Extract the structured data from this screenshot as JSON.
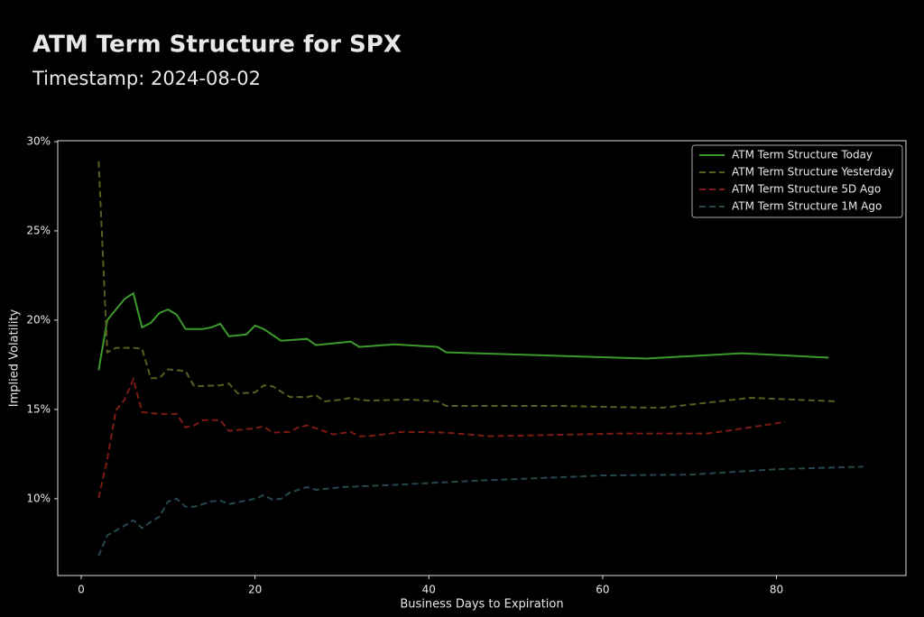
{
  "chart_data": {
    "type": "line",
    "title": "ATM Term Structure for SPX",
    "subtitle": "Timestamp: 2024-08-02",
    "x_label": "Business Days to Expiration",
    "y_label": "Implied Volatility",
    "xlim": [
      -2.7,
      94.9
    ],
    "xticks": [
      0,
      20,
      40,
      60,
      80
    ],
    "ylim": [
      5.7,
      30.05
    ],
    "yticks": [
      {
        "value": 10,
        "label": "10%"
      },
      {
        "value": 15,
        "label": "15%"
      },
      {
        "value": 20,
        "label": "20%"
      },
      {
        "value": 25,
        "label": "25%"
      },
      {
        "value": 30,
        "label": "30%"
      }
    ],
    "grid": false,
    "legend": "upper right",
    "series": [
      {
        "name": "ATM Term Structure Today",
        "color": "#3c9a2c",
        "dash": "solid",
        "x": [
          2,
          3,
          4,
          5,
          6,
          7,
          8,
          9,
          10,
          11,
          12,
          14,
          15,
          16,
          17,
          19,
          20,
          21,
          23,
          26,
          27,
          31,
          32,
          36,
          41,
          42,
          65,
          76,
          86
        ],
        "values": [
          17.2,
          20.0,
          20.6,
          21.2,
          21.5,
          19.6,
          19.85,
          20.4,
          20.6,
          20.3,
          19.5,
          19.5,
          19.6,
          19.8,
          19.1,
          19.2,
          19.7,
          19.5,
          18.85,
          18.95,
          18.6,
          18.8,
          18.5,
          18.65,
          18.5,
          18.2,
          17.85,
          18.15,
          17.9
        ]
      },
      {
        "name": "ATM Term Structure Yesterday",
        "color": "#5c5c20",
        "dash": "dashed",
        "x": [
          2,
          3,
          4,
          6,
          7,
          8,
          9,
          10,
          12,
          13,
          16,
          17,
          18,
          20,
          21,
          22,
          24,
          26,
          27,
          28,
          30,
          31,
          32,
          33,
          38,
          41,
          42,
          55,
          65,
          67,
          77,
          87
        ],
        "values": [
          28.9,
          18.2,
          18.45,
          18.45,
          18.4,
          16.75,
          16.75,
          17.25,
          17.15,
          16.3,
          16.35,
          16.45,
          15.9,
          15.95,
          16.35,
          16.3,
          15.7,
          15.7,
          15.8,
          15.45,
          15.55,
          15.65,
          15.55,
          15.5,
          15.55,
          15.45,
          15.2,
          15.2,
          15.1,
          15.1,
          15.65,
          15.45
        ]
      },
      {
        "name": "ATM Term Structure 5D Ago",
        "color": "#7c1a14",
        "dash": "dashed",
        "x": [
          2,
          3,
          4,
          5,
          6,
          7,
          8,
          9,
          11,
          12,
          13,
          14,
          16,
          17,
          20,
          21,
          22,
          24,
          25,
          26,
          27,
          29,
          31,
          32,
          33,
          37,
          42,
          47,
          52,
          62,
          72,
          75,
          81
        ],
        "values": [
          10.05,
          12.2,
          14.95,
          15.55,
          16.7,
          14.85,
          14.8,
          14.75,
          14.75,
          14.0,
          14.1,
          14.4,
          14.4,
          13.8,
          13.95,
          14.05,
          13.7,
          13.75,
          14.0,
          14.1,
          13.95,
          13.6,
          13.75,
          13.5,
          13.5,
          13.75,
          13.7,
          13.5,
          13.55,
          13.65,
          13.65,
          13.85,
          14.3
        ]
      },
      {
        "name": "ATM Term Structure 1M Ago",
        "color": "#26474f",
        "dash": "dashed",
        "x": [
          2,
          3,
          5,
          6,
          7,
          8,
          9,
          10,
          11,
          12,
          13,
          15,
          16,
          17,
          18,
          20,
          21,
          22,
          23,
          24,
          26,
          27,
          30,
          35,
          45,
          60,
          70,
          80,
          90
        ],
        "values": [
          6.8,
          7.95,
          8.5,
          8.8,
          8.35,
          8.7,
          9.0,
          9.85,
          10.0,
          9.55,
          9.55,
          9.85,
          9.9,
          9.7,
          9.8,
          10.0,
          10.2,
          9.95,
          10.0,
          10.35,
          10.65,
          10.5,
          10.65,
          10.75,
          11.0,
          11.3,
          11.35,
          11.65,
          11.8
        ]
      }
    ]
  }
}
